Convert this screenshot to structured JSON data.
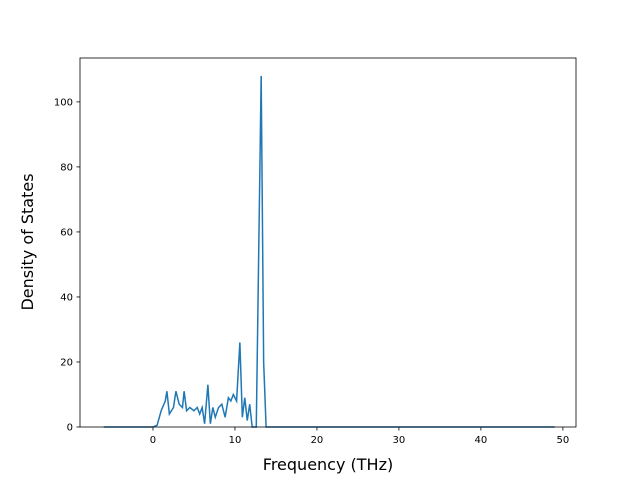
{
  "chart_data": {
    "type": "line",
    "x_label": "Frequency (THz)",
    "y_label": "Density of States",
    "x": [
      -6,
      0,
      0.5,
      1,
      1.5,
      1.7,
      2,
      2.5,
      2.8,
      3.2,
      3.6,
      3.8,
      4.1,
      4.5,
      5,
      5.4,
      5.7,
      6,
      6.3,
      6.7,
      7,
      7.3,
      7.6,
      8,
      8.4,
      8.8,
      9.2,
      9.5,
      9.8,
      10.2,
      10.6,
      10.9,
      11.2,
      11.5,
      11.8,
      12.1,
      12.6,
      13.2,
      13.5,
      13.8,
      49
    ],
    "series": [
      {
        "name": "DOS",
        "color": "#1f77b4",
        "values": [
          0,
          0,
          0.5,
          5,
          8,
          11,
          4,
          6,
          11,
          7,
          6,
          11,
          5,
          6,
          5,
          6,
          4,
          6,
          1,
          13,
          1,
          6,
          3,
          6,
          7,
          3,
          9,
          8,
          10,
          8,
          26,
          3,
          9,
          2,
          7,
          0,
          0,
          108,
          20,
          0,
          0
        ]
      }
    ],
    "xlim": [
      -8.9,
      51.6
    ],
    "xticks": [
      0,
      10,
      20,
      30,
      40,
      50
    ],
    "ylim": [
      0,
      113.5
    ],
    "yticks": [
      0,
      20,
      40,
      60,
      80,
      100
    ],
    "grid": false
  }
}
